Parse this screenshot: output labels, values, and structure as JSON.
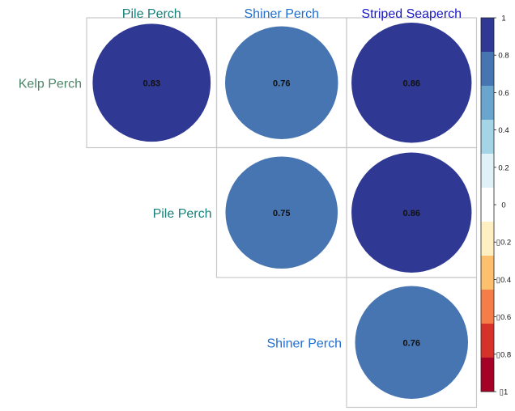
{
  "chart_data": {
    "type": "heatmap",
    "subtype": "upper-triangle correlation plot with circles",
    "column_labels": [
      "Pile Perch",
      "Shiner Perch",
      "Striped Seaperch"
    ],
    "row_labels": [
      "Kelp Perch",
      "Pile Perch",
      "Shiner Perch"
    ],
    "cells": [
      {
        "row": "Kelp Perch",
        "col": "Pile Perch",
        "value": 0.83,
        "label": "0.83"
      },
      {
        "row": "Kelp Perch",
        "col": "Shiner Perch",
        "value": 0.76,
        "label": "0.76"
      },
      {
        "row": "Kelp Perch",
        "col": "Striped Seaperch",
        "value": 0.86,
        "label": "0.86"
      },
      {
        "row": "Pile Perch",
        "col": "Shiner Perch",
        "value": 0.75,
        "label": "0.75"
      },
      {
        "row": "Pile Perch",
        "col": "Striped Seaperch",
        "value": 0.86,
        "label": "0.86"
      },
      {
        "row": "Shiner Perch",
        "col": "Striped Seaperch",
        "value": 0.76,
        "label": "0.76"
      }
    ],
    "colorbar": {
      "range": [
        -1,
        1
      ],
      "tick_labels": [
        "1",
        "0.8",
        "0.6",
        "0.4",
        "0.2",
        "0",
        "▯0.2",
        "▯0.4",
        "▯0.6",
        "▯0.8",
        "▯1"
      ],
      "tick_values": [
        1,
        0.8,
        0.6,
        0.4,
        0.2,
        0,
        -0.2,
        -0.4,
        -0.6,
        -0.8,
        -1
      ],
      "bins_top_to_bottom": [
        "#2f3993",
        "#4775b1",
        "#6aa5cd",
        "#a6d4e7",
        "#e0f1f7",
        "#ffffff",
        "#fef0c2",
        "#fcc06e",
        "#f47d4a",
        "#d73229",
        "#a50026"
      ]
    },
    "label_colors": {
      "Kelp Perch": "#4a8567",
      "Pile Perch": "#16807a",
      "Shiner Perch": "#1f6ed0",
      "Striped Seaperch": "#1a18c7"
    },
    "grid": true,
    "legend": "right"
  }
}
